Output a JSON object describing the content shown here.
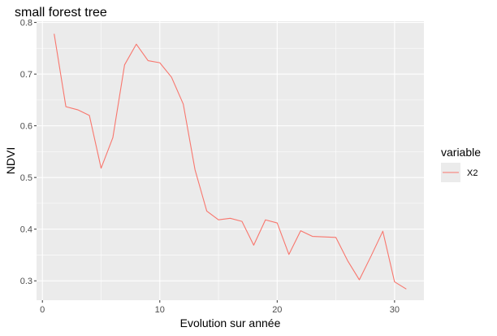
{
  "chart_data": {
    "type": "line",
    "title": "small forest tree",
    "xlabel": "Evolution sur année",
    "ylabel": "NDVI",
    "xlim": [
      -0.5,
      32.5
    ],
    "ylim": [
      0.2625,
      0.8025
    ],
    "x_ticks": [
      0,
      10,
      20,
      30
    ],
    "y_ticks": [
      0.3,
      0.4,
      0.5,
      0.6,
      0.7,
      0.8
    ],
    "grid": true,
    "legend": {
      "title": "variable",
      "position": "right"
    },
    "series": [
      {
        "name": "X2",
        "color": "#f8766d",
        "x": [
          1,
          2,
          3,
          4,
          5,
          6,
          7,
          8,
          9,
          10,
          11,
          12,
          13,
          14,
          15,
          16,
          17,
          18,
          19,
          20,
          21,
          22,
          23,
          24,
          25,
          26,
          27,
          28,
          29,
          30,
          31
        ],
        "values": [
          0.778,
          0.637,
          0.631,
          0.62,
          0.518,
          0.577,
          0.718,
          0.758,
          0.726,
          0.722,
          0.694,
          0.642,
          0.515,
          0.435,
          0.418,
          0.421,
          0.415,
          0.369,
          0.418,
          0.412,
          0.351,
          0.397,
          0.386,
          0.385,
          0.384,
          0.339,
          0.302,
          0.348,
          0.396,
          0.298,
          0.284
        ]
      }
    ]
  }
}
